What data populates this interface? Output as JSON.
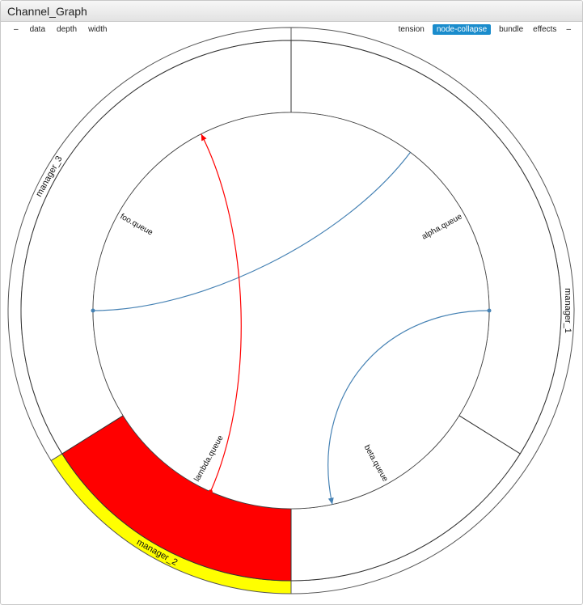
{
  "window": {
    "title": "Channel_Graph"
  },
  "toolbar": {
    "left": [
      {
        "label": "–",
        "name": "collapse-left-button"
      },
      {
        "label": "data",
        "name": "data-button"
      },
      {
        "label": "depth",
        "name": "depth-button"
      },
      {
        "label": "width",
        "name": "width-button"
      }
    ],
    "right": [
      {
        "label": "tension",
        "name": "tension-button",
        "active": false
      },
      {
        "label": "node-collapse",
        "name": "node-collapse-button",
        "active": true
      },
      {
        "label": "bundle",
        "name": "bundle-button",
        "active": false
      },
      {
        "label": "effects",
        "name": "effects-button",
        "active": false
      },
      {
        "label": "–",
        "name": "collapse-right-button",
        "active": false
      }
    ]
  },
  "diagram": {
    "managers": [
      {
        "label": "manager_1",
        "start": 0,
        "end": 180,
        "fill": "#ffffff"
      },
      {
        "label": "manager_2",
        "start": 180,
        "end": 238,
        "fill": "#ffff00"
      },
      {
        "label": "manager_3",
        "start": 238,
        "end": 360,
        "fill": "#ffffff"
      }
    ],
    "queues": [
      {
        "label": "alpha.queue",
        "start": 0,
        "end": 122,
        "mid": 61,
        "fill": "#ffffff"
      },
      {
        "label": "beta.queue",
        "start": 122,
        "end": 180,
        "mid": 151,
        "fill": "#ffffff"
      },
      {
        "label": "lambda.queue",
        "start": 180,
        "end": 238,
        "mid": 209,
        "fill": "#ff0000"
      },
      {
        "label": "foo.queue",
        "start": 238,
        "end": 360,
        "mid": 299,
        "fill": "#ffffff"
      }
    ],
    "links": [
      {
        "from": 270,
        "to": 37,
        "color": "#4682b4",
        "arrow": false
      },
      {
        "from": 90,
        "to": 168,
        "color": "#4682b4",
        "arrow": true
      },
      {
        "from": 204,
        "to": 333,
        "color": "#ff0000",
        "arrow": true
      }
    ]
  }
}
